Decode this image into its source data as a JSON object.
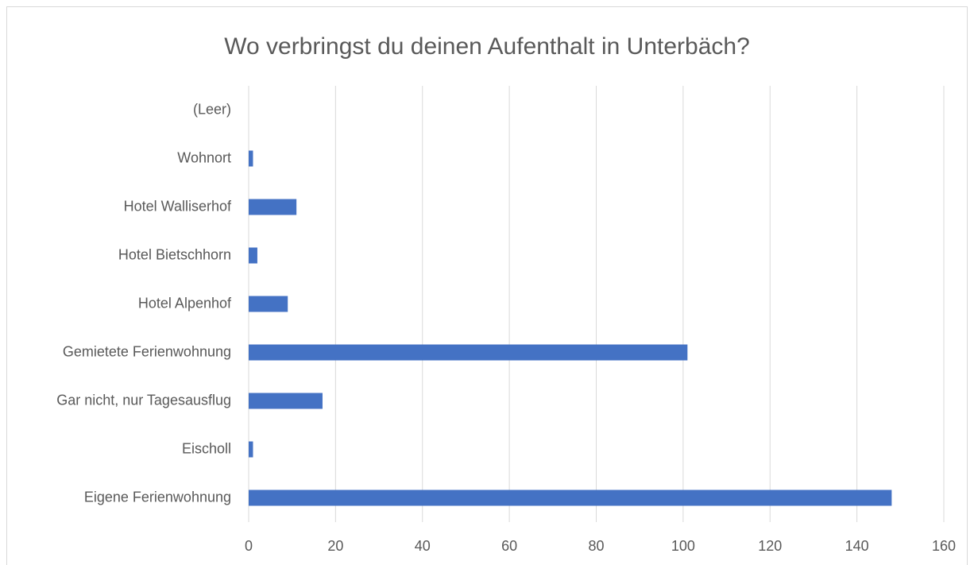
{
  "chart_data": {
    "type": "barh",
    "title": "Wo verbringst du deinen Aufenthalt in Unterbäch?",
    "categories": [
      "(Leer)",
      "Wohnort",
      "Hotel Walliserhof",
      "Hotel Bietschhorn",
      "Hotel Alpenhof",
      "Gemietete Ferienwohnung",
      "Gar nicht, nur Tagesausflug",
      "Eischoll",
      "Eigene Ferienwohnung"
    ],
    "values": [
      0,
      1,
      11,
      2,
      9,
      101,
      17,
      1,
      148
    ],
    "color": "#4472c4",
    "xlim": [
      0,
      160
    ],
    "xticks": [
      0,
      20,
      40,
      60,
      80,
      100,
      120,
      140,
      160
    ],
    "grid": true
  }
}
